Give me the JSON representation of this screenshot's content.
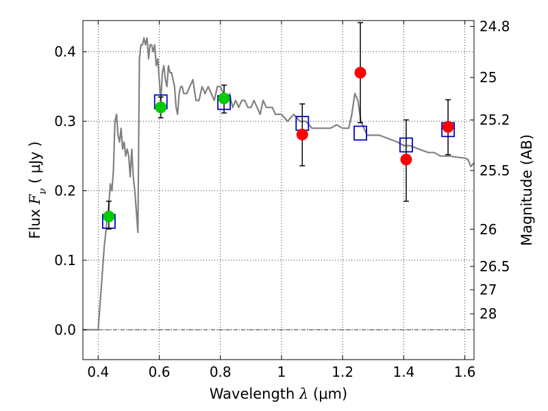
{
  "chart_data": {
    "type": "scatter",
    "xlabel": {
      "prefix": "Wavelength  ",
      "symbol": "λ",
      "unit": " (μm)"
    },
    "ylabel": {
      "prefix": "Flux  ",
      "symbol": "F",
      "sub": "ν",
      "unit": " ( μJy )"
    },
    "y2label": "Magnitude (AB)",
    "xlim": [
      0.35,
      1.63
    ],
    "ylim": [
      -0.043,
      0.445
    ],
    "xticks": [
      {
        "value": 0.4,
        "label": "0.4"
      },
      {
        "value": 0.6,
        "label": "0.6"
      },
      {
        "value": 0.8,
        "label": "0.8"
      },
      {
        "value": 1.0,
        "label": "1"
      },
      {
        "value": 1.2,
        "label": "1.2"
      },
      {
        "value": 1.4,
        "label": "1.4"
      },
      {
        "value": 1.6,
        "label": "1.6"
      }
    ],
    "yticks": [
      {
        "value": 0.0,
        "label": "0.0"
      },
      {
        "value": 0.1,
        "label": "0.1"
      },
      {
        "value": 0.2,
        "label": "0.2"
      },
      {
        "value": 0.3,
        "label": "0.3"
      },
      {
        "value": 0.4,
        "label": "0.4"
      }
    ],
    "y2ticks": [
      {
        "mag": 24.8,
        "label": "24.8"
      },
      {
        "mag": 25.0,
        "label": "25"
      },
      {
        "mag": 25.2,
        "label": "25.2"
      },
      {
        "mag": 25.5,
        "label": "25.5"
      },
      {
        "mag": 26.0,
        "label": "26"
      },
      {
        "mag": 26.5,
        "label": "26.5"
      },
      {
        "mag": 27.0,
        "label": "27"
      },
      {
        "mag": 28.0,
        "label": "28"
      }
    ],
    "grid": true,
    "zero_line": true,
    "colors": {
      "model": "#808080",
      "photometry_green": "#00cc00",
      "photometry_red": "#ff0000",
      "model_bands": "#0000cc",
      "errorbar": "#000000"
    },
    "series": [
      {
        "name": "model-spectrum",
        "kind": "line",
        "x": [
          0.35,
          0.4,
          0.41,
          0.42,
          0.43,
          0.435,
          0.44,
          0.445,
          0.45,
          0.455,
          0.46,
          0.465,
          0.47,
          0.475,
          0.48,
          0.485,
          0.49,
          0.495,
          0.5,
          0.505,
          0.51,
          0.515,
          0.52,
          0.525,
          0.53,
          0.535,
          0.54,
          0.545,
          0.55,
          0.555,
          0.56,
          0.565,
          0.57,
          0.575,
          0.58,
          0.585,
          0.59,
          0.595,
          0.6,
          0.605,
          0.61,
          0.615,
          0.62,
          0.625,
          0.63,
          0.635,
          0.64,
          0.645,
          0.65,
          0.655,
          0.66,
          0.665,
          0.67,
          0.675,
          0.68,
          0.69,
          0.7,
          0.71,
          0.72,
          0.73,
          0.74,
          0.75,
          0.76,
          0.77,
          0.78,
          0.79,
          0.8,
          0.81,
          0.82,
          0.83,
          0.84,
          0.85,
          0.86,
          0.87,
          0.88,
          0.89,
          0.9,
          0.91,
          0.92,
          0.93,
          0.94,
          0.95,
          0.96,
          0.97,
          0.98,
          0.99,
          1.0,
          1.02,
          1.04,
          1.06,
          1.08,
          1.1,
          1.12,
          1.14,
          1.16,
          1.18,
          1.2,
          1.22,
          1.23,
          1.24,
          1.25,
          1.26,
          1.28,
          1.3,
          1.32,
          1.35,
          1.38,
          1.4,
          1.42,
          1.45,
          1.48,
          1.5,
          1.52,
          1.55,
          1.58,
          1.6,
          1.61,
          1.62,
          1.63
        ],
        "y": [
          0.0,
          0.0,
          0.06,
          0.12,
          0.16,
          0.18,
          0.21,
          0.2,
          0.23,
          0.3,
          0.31,
          0.28,
          0.27,
          0.29,
          0.26,
          0.27,
          0.25,
          0.26,
          0.25,
          0.22,
          0.26,
          0.22,
          0.2,
          0.17,
          0.14,
          0.39,
          0.41,
          0.41,
          0.42,
          0.41,
          0.42,
          0.39,
          0.41,
          0.41,
          0.4,
          0.41,
          0.38,
          0.39,
          0.36,
          0.33,
          0.37,
          0.38,
          0.36,
          0.35,
          0.38,
          0.37,
          0.37,
          0.36,
          0.35,
          0.32,
          0.31,
          0.34,
          0.35,
          0.35,
          0.34,
          0.34,
          0.35,
          0.36,
          0.33,
          0.33,
          0.35,
          0.34,
          0.35,
          0.34,
          0.33,
          0.35,
          0.35,
          0.34,
          0.33,
          0.34,
          0.32,
          0.33,
          0.32,
          0.33,
          0.33,
          0.32,
          0.32,
          0.33,
          0.32,
          0.31,
          0.33,
          0.32,
          0.32,
          0.32,
          0.31,
          0.31,
          0.31,
          0.3,
          0.31,
          0.3,
          0.3,
          0.29,
          0.29,
          0.29,
          0.29,
          0.295,
          0.29,
          0.29,
          0.31,
          0.34,
          0.33,
          0.3,
          0.28,
          0.28,
          0.28,
          0.275,
          0.27,
          0.265,
          0.265,
          0.26,
          0.255,
          0.255,
          0.25,
          0.25,
          0.248,
          0.247,
          0.245,
          0.235,
          0.24
        ]
      },
      {
        "name": "observed-green",
        "kind": "points",
        "points": [
          {
            "x": 0.435,
            "y": 0.163,
            "err_lo": 0.145,
            "err_hi": 0.185
          },
          {
            "x": 0.605,
            "y": 0.32,
            "err_lo": 0.305,
            "err_hi": 0.335
          },
          {
            "x": 0.812,
            "y": 0.333,
            "err_lo": 0.312,
            "err_hi": 0.352
          }
        ]
      },
      {
        "name": "observed-red",
        "kind": "points",
        "points": [
          {
            "x": 1.068,
            "y": 0.281,
            "err_lo": 0.236,
            "err_hi": 0.325
          },
          {
            "x": 1.258,
            "y": 0.37,
            "err_lo": 0.298,
            "err_hi": 0.442
          },
          {
            "x": 1.408,
            "y": 0.245,
            "err_lo": 0.185,
            "err_hi": 0.302
          },
          {
            "x": 1.545,
            "y": 0.292,
            "err_lo": 0.252,
            "err_hi": 0.331
          }
        ]
      },
      {
        "name": "model-bandpass",
        "kind": "squares",
        "points": [
          {
            "x": 0.435,
            "y": 0.156
          },
          {
            "x": 0.605,
            "y": 0.328
          },
          {
            "x": 0.812,
            "y": 0.327
          },
          {
            "x": 1.068,
            "y": 0.297
          },
          {
            "x": 1.258,
            "y": 0.283
          },
          {
            "x": 1.408,
            "y": 0.266
          },
          {
            "x": 1.545,
            "y": 0.288
          }
        ]
      }
    ]
  }
}
